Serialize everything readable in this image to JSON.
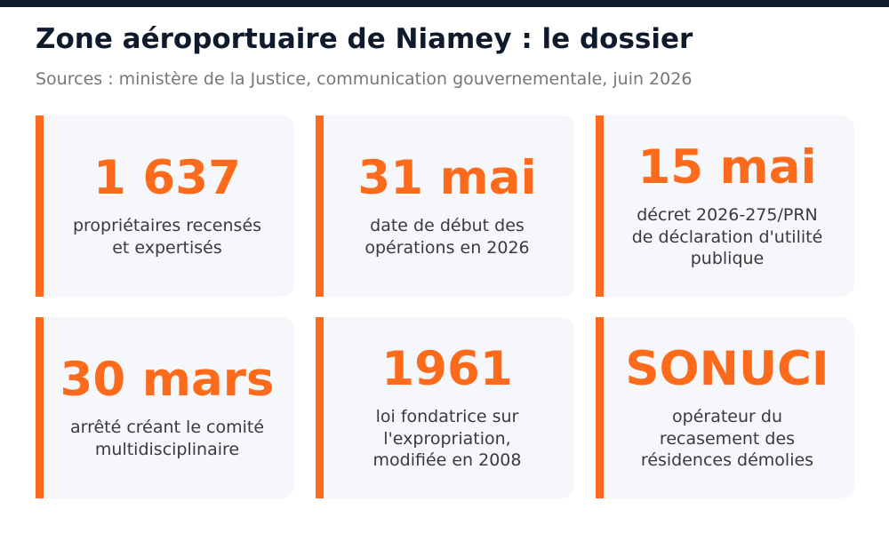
{
  "header": {
    "title": "Zone aéroportuaire de Niamey : le dossier",
    "subtitle": "Sources : ministère de la Justice, communication gouvernementale, juin 2026"
  },
  "cards": [
    {
      "value": "1 637",
      "label": "propriétaires recensés\net expertisés"
    },
    {
      "value": "31 mai",
      "label": "date de début des\nopérations en 2026"
    },
    {
      "value": "15 mai",
      "label": "décret 2026-275/PRN\nde déclaration d'utilité\npublique"
    },
    {
      "value": "30 mars",
      "label": "arrêté créant le comité\nmultidisciplinaire"
    },
    {
      "value": "1961",
      "label": "loi fondatrice sur\nl'expropriation,\nmodifiée en 2008"
    },
    {
      "value": "SONUCI",
      "label": "opérateur du\nrecasement des\nrésidences démolies"
    }
  ],
  "colors": {
    "accent": "#fc6a1c",
    "title": "#0f1a2c",
    "subtitle": "#777777",
    "card_background": "#f5f7fb"
  }
}
